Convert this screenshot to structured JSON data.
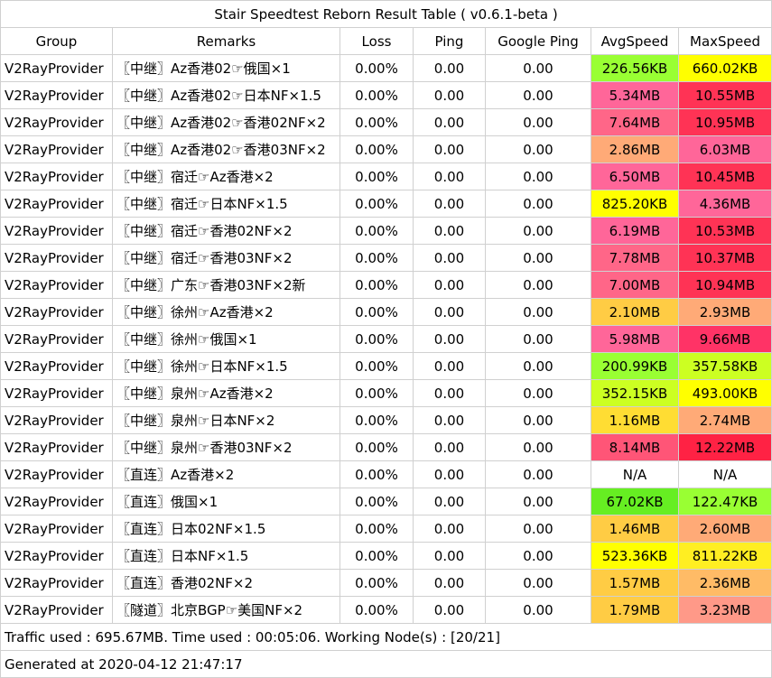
{
  "title": "Stair Speedtest Reborn Result Table ( v0.6.1-beta )",
  "headers": [
    "Group",
    "Remarks",
    "Loss",
    "Ping",
    "Google Ping",
    "AvgSpeed",
    "MaxSpeed"
  ],
  "rows": [
    {
      "group": "V2RayProvider",
      "remarks": "〖中继〗Az香港02☞俄国×1",
      "loss": "0.00%",
      "ping": "0.00",
      "google_ping": "0.00",
      "avg": "226.56KB",
      "avg_color": "#99ff33",
      "max": "660.02KB",
      "max_color": "#ffff00"
    },
    {
      "group": "V2RayProvider",
      "remarks": "〖中继〗Az香港02☞日本NF×1.5",
      "loss": "0.00%",
      "ping": "0.00",
      "google_ping": "0.00",
      "avg": "5.34MB",
      "avg_color": "#ff6699",
      "max": "10.55MB",
      "max_color": "#ff3355"
    },
    {
      "group": "V2RayProvider",
      "remarks": "〖中继〗Az香港02☞香港02NF×2",
      "loss": "0.00%",
      "ping": "0.00",
      "google_ping": "0.00",
      "avg": "7.64MB",
      "avg_color": "#ff6688",
      "max": "10.95MB",
      "max_color": "#ff3355"
    },
    {
      "group": "V2RayProvider",
      "remarks": "〖中继〗Az香港02☞香港03NF×2",
      "loss": "0.00%",
      "ping": "0.00",
      "google_ping": "0.00",
      "avg": "2.86MB",
      "avg_color": "#ffaa77",
      "max": "6.03MB",
      "max_color": "#ff6699"
    },
    {
      "group": "V2RayProvider",
      "remarks": "〖中继〗宿迁☞Az香港×2",
      "loss": "0.00%",
      "ping": "0.00",
      "google_ping": "0.00",
      "avg": "6.50MB",
      "avg_color": "#ff6699",
      "max": "10.45MB",
      "max_color": "#ff3355"
    },
    {
      "group": "V2RayProvider",
      "remarks": "〖中继〗宿迁☞日本NF×1.5",
      "loss": "0.00%",
      "ping": "0.00",
      "google_ping": "0.00",
      "avg": "825.20KB",
      "avg_color": "#ffff00",
      "max": "4.36MB",
      "max_color": "#ff6699"
    },
    {
      "group": "V2RayProvider",
      "remarks": "〖中继〗宿迁☞香港02NF×2",
      "loss": "0.00%",
      "ping": "0.00",
      "google_ping": "0.00",
      "avg": "6.19MB",
      "avg_color": "#ff6699",
      "max": "10.53MB",
      "max_color": "#ff3355"
    },
    {
      "group": "V2RayProvider",
      "remarks": "〖中继〗宿迁☞香港03NF×2",
      "loss": "0.00%",
      "ping": "0.00",
      "google_ping": "0.00",
      "avg": "7.78MB",
      "avg_color": "#ff6688",
      "max": "10.37MB",
      "max_color": "#ff3355"
    },
    {
      "group": "V2RayProvider",
      "remarks": "〖中继〗广东☞香港03NF×2新",
      "loss": "0.00%",
      "ping": "0.00",
      "google_ping": "0.00",
      "avg": "7.00MB",
      "avg_color": "#ff6688",
      "max": "10.94MB",
      "max_color": "#ff3355"
    },
    {
      "group": "V2RayProvider",
      "remarks": "〖中继〗徐州☞Az香港×2",
      "loss": "0.00%",
      "ping": "0.00",
      "google_ping": "0.00",
      "avg": "2.10MB",
      "avg_color": "#ffcc44",
      "max": "2.93MB",
      "max_color": "#ffaa77"
    },
    {
      "group": "V2RayProvider",
      "remarks": "〖中继〗徐州☞俄国×1",
      "loss": "0.00%",
      "ping": "0.00",
      "google_ping": "0.00",
      "avg": "5.98MB",
      "avg_color": "#ff6699",
      "max": "9.66MB",
      "max_color": "#ff3366"
    },
    {
      "group": "V2RayProvider",
      "remarks": "〖中继〗徐州☞日本NF×1.5",
      "loss": "0.00%",
      "ping": "0.00",
      "google_ping": "0.00",
      "avg": "200.99KB",
      "avg_color": "#99ff33",
      "max": "357.58KB",
      "max_color": "#ccff22"
    },
    {
      "group": "V2RayProvider",
      "remarks": "〖中继〗泉州☞Az香港×2",
      "loss": "0.00%",
      "ping": "0.00",
      "google_ping": "0.00",
      "avg": "352.15KB",
      "avg_color": "#ccff22",
      "max": "493.00KB",
      "max_color": "#ffff00"
    },
    {
      "group": "V2RayProvider",
      "remarks": "〖中继〗泉州☞日本NF×2",
      "loss": "0.00%",
      "ping": "0.00",
      "google_ping": "0.00",
      "avg": "1.16MB",
      "avg_color": "#ffdd33",
      "max": "2.74MB",
      "max_color": "#ffaa77"
    },
    {
      "group": "V2RayProvider",
      "remarks": "〖中继〗泉州☞香港03NF×2",
      "loss": "0.00%",
      "ping": "0.00",
      "google_ping": "0.00",
      "avg": "8.14MB",
      "avg_color": "#ff5577",
      "max": "12.22MB",
      "max_color": "#ff2244"
    },
    {
      "group": "V2RayProvider",
      "remarks": "〖直连〗Az香港×2",
      "loss": "0.00%",
      "ping": "0.00",
      "google_ping": "0.00",
      "avg": "N/A",
      "avg_color": "#ffffff",
      "max": "N/A",
      "max_color": "#ffffff"
    },
    {
      "group": "V2RayProvider",
      "remarks": "〖直连〗俄国×1",
      "loss": "0.00%",
      "ping": "0.00",
      "google_ping": "0.00",
      "avg": "67.02KB",
      "avg_color": "#66ee22",
      "max": "122.47KB",
      "max_color": "#99ff33"
    },
    {
      "group": "V2RayProvider",
      "remarks": "〖直连〗日本02NF×1.5",
      "loss": "0.00%",
      "ping": "0.00",
      "google_ping": "0.00",
      "avg": "1.46MB",
      "avg_color": "#ffcc44",
      "max": "2.60MB",
      "max_color": "#ffaa77"
    },
    {
      "group": "V2RayProvider",
      "remarks": "〖直连〗日本NF×1.5",
      "loss": "0.00%",
      "ping": "0.00",
      "google_ping": "0.00",
      "avg": "523.36KB",
      "avg_color": "#ffff00",
      "max": "811.22KB",
      "max_color": "#ffee22"
    },
    {
      "group": "V2RayProvider",
      "remarks": "〖直连〗香港02NF×2",
      "loss": "0.00%",
      "ping": "0.00",
      "google_ping": "0.00",
      "avg": "1.57MB",
      "avg_color": "#ffcc44",
      "max": "2.36MB",
      "max_color": "#ffbb66"
    },
    {
      "group": "V2RayProvider",
      "remarks": "〖隧道〗北京BGP☞美国NF×2",
      "loss": "0.00%",
      "ping": "0.00",
      "google_ping": "0.00",
      "avg": "1.79MB",
      "avg_color": "#ffcc44",
      "max": "3.23MB",
      "max_color": "#ff9988"
    }
  ],
  "footer": {
    "traffic": "Traffic used : 695.67MB. Time used : 00:05:06. Working Node(s) : [20/21]",
    "generated": "Generated at 2020-04-12 21:47:17"
  }
}
